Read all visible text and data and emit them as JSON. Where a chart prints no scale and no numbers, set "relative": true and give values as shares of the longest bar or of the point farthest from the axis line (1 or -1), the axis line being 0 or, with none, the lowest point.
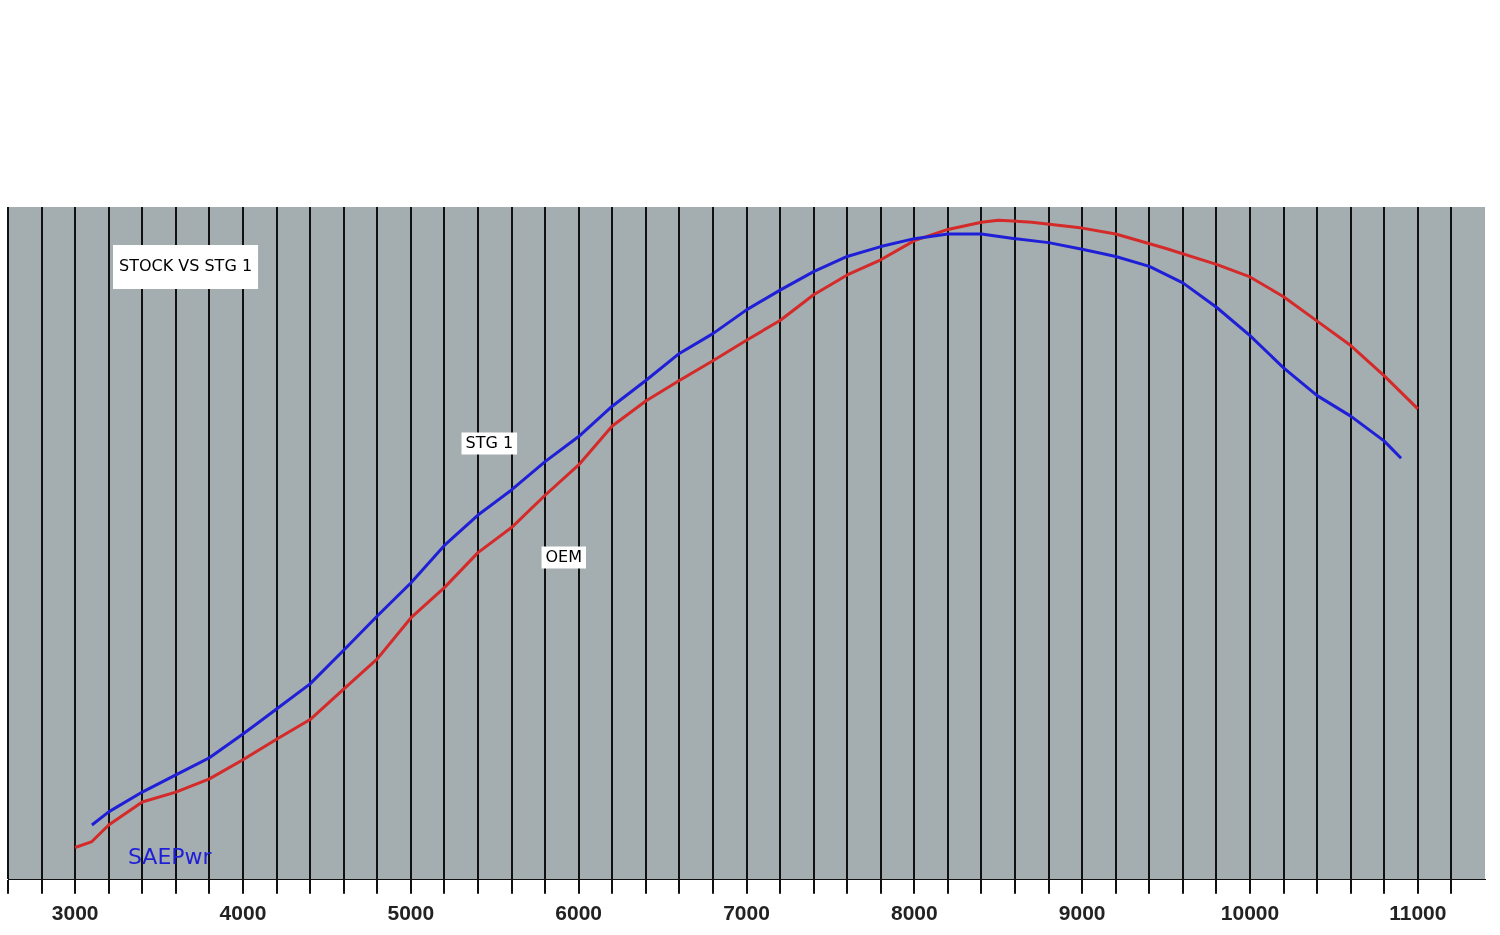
{
  "chart_data": {
    "type": "line",
    "title": "STOCK VS STG 1",
    "ylabel": "SAEPwr",
    "relative": true,
    "grid": "x",
    "legend": false,
    "marker": "none",
    "line_style": "solid",
    "xlim": [
      2600,
      11400
    ],
    "xticks": [
      {
        "value": 2600,
        "label": null
      },
      {
        "value": 2800,
        "label": null
      },
      3000,
      {
        "value": 3200,
        "label": null
      },
      {
        "value": 3400,
        "label": null
      },
      {
        "value": 3600,
        "label": null
      },
      {
        "value": 3800,
        "label": null
      },
      4000,
      {
        "value": 4200,
        "label": null
      },
      {
        "value": 4400,
        "label": null
      },
      {
        "value": 4600,
        "label": null
      },
      {
        "value": 4800,
        "label": null
      },
      5000,
      {
        "value": 5200,
        "label": null
      },
      {
        "value": 5400,
        "label": null
      },
      {
        "value": 5600,
        "label": null
      },
      {
        "value": 5800,
        "label": null
      },
      6000,
      {
        "value": 6200,
        "label": null
      },
      {
        "value": 6400,
        "label": null
      },
      {
        "value": 6600,
        "label": null
      },
      {
        "value": 6800,
        "label": null
      },
      7000,
      {
        "value": 7200,
        "label": null
      },
      {
        "value": 7400,
        "label": null
      },
      {
        "value": 7600,
        "label": null
      },
      {
        "value": 7800,
        "label": null
      },
      8000,
      {
        "value": 8200,
        "label": null
      },
      {
        "value": 8400,
        "label": null
      },
      {
        "value": 8600,
        "label": null
      },
      {
        "value": 8800,
        "label": null
      },
      9000,
      {
        "value": 9200,
        "label": null
      },
      {
        "value": 9400,
        "label": null
      },
      {
        "value": 9600,
        "label": null
      },
      {
        "value": 9800,
        "label": null
      },
      10000,
      {
        "value": 10200,
        "label": null
      },
      {
        "value": 10400,
        "label": null
      },
      {
        "value": 10600,
        "label": null
      },
      {
        "value": 10800,
        "label": null
      },
      11000,
      {
        "value": 11200,
        "label": null
      }
    ],
    "series": [
      {
        "name": "STG 1",
        "color": "#1f1fd8",
        "x": [
          3100,
          3200,
          3400,
          3600,
          3800,
          4000,
          4200,
          4400,
          4600,
          4800,
          5000,
          5200,
          5400,
          5600,
          5800,
          6000,
          6200,
          6400,
          6600,
          6800,
          7000,
          7200,
          7400,
          7600,
          7800,
          8000,
          8200,
          8400,
          8600,
          8800,
          9000,
          9200,
          9400,
          9600,
          9800,
          10000,
          10200,
          10400,
          10600,
          10800,
          10900
        ],
        "values": [
          0.083,
          0.103,
          0.133,
          0.159,
          0.185,
          0.221,
          0.259,
          0.297,
          0.348,
          0.4,
          0.45,
          0.507,
          0.553,
          0.591,
          0.634,
          0.672,
          0.718,
          0.757,
          0.798,
          0.828,
          0.864,
          0.894,
          0.922,
          0.945,
          0.96,
          0.972,
          0.979,
          0.979,
          0.972,
          0.966,
          0.956,
          0.945,
          0.93,
          0.905,
          0.868,
          0.825,
          0.776,
          0.734,
          0.703,
          0.665,
          0.639
        ]
      },
      {
        "name": "OEM",
        "color": "#d42a2a",
        "x": [
          3000,
          3100,
          3200,
          3400,
          3600,
          3800,
          4000,
          4200,
          4400,
          4600,
          4800,
          5000,
          5200,
          5400,
          5600,
          5800,
          6000,
          6200,
          6400,
          6600,
          6800,
          7000,
          7200,
          7400,
          7600,
          7800,
          8000,
          8200,
          8400,
          8500,
          8700,
          9000,
          9200,
          9500,
          9800,
          10000,
          10200,
          10400,
          10600,
          10800,
          11000
        ],
        "values": [
          0.049,
          0.058,
          0.083,
          0.118,
          0.133,
          0.153,
          0.182,
          0.213,
          0.243,
          0.289,
          0.335,
          0.397,
          0.443,
          0.496,
          0.534,
          0.583,
          0.629,
          0.688,
          0.726,
          0.757,
          0.787,
          0.818,
          0.848,
          0.887,
          0.917,
          0.94,
          0.969,
          0.986,
          0.997,
          1.0,
          0.997,
          0.988,
          0.979,
          0.957,
          0.933,
          0.914,
          0.884,
          0.847,
          0.81,
          0.764,
          0.714
        ]
      }
    ]
  }
}
